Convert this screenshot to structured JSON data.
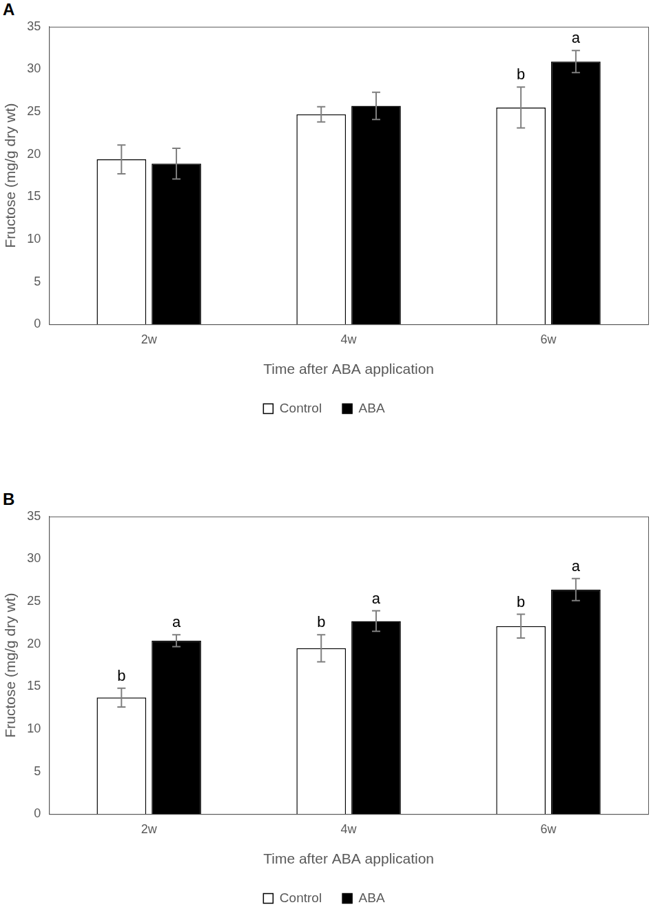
{
  "chart_data": [
    {
      "type": "bar",
      "title": "A",
      "x_label": "Time after ABA application",
      "y_label": "Fructose (mg/g dry wt)",
      "categories": [
        "2w",
        "4w",
        "6w"
      ],
      "series": [
        {
          "name": "Control",
          "color": "#ffffff",
          "values": [
            19.4,
            24.7,
            25.5
          ],
          "errors": [
            1.7,
            0.9,
            2.4
          ],
          "letters": [
            null,
            null,
            "b"
          ]
        },
        {
          "name": "ABA",
          "color": "#000000",
          "values": [
            18.9,
            25.7,
            30.9
          ],
          "errors": [
            1.8,
            1.6,
            1.3
          ],
          "letters": [
            null,
            null,
            "a"
          ]
        }
      ],
      "ylim": [
        0,
        35
      ],
      "yticks": [
        0,
        5,
        10,
        15,
        20,
        25,
        30,
        35
      ],
      "grid": false,
      "legend": "bottom"
    },
    {
      "type": "bar",
      "title": "B",
      "x_label": "Time after ABA application",
      "y_label": "Fructose (mg/g dry wt)",
      "categories": [
        "2w",
        "4w",
        "6w"
      ],
      "series": [
        {
          "name": "Control",
          "color": "#ffffff",
          "values": [
            13.7,
            19.5,
            22.1
          ],
          "errors": [
            1.1,
            1.6,
            1.4
          ],
          "letters": [
            "b",
            "b",
            "b"
          ]
        },
        {
          "name": "ABA",
          "color": "#000000",
          "values": [
            20.4,
            22.7,
            26.4
          ],
          "errors": [
            0.7,
            1.2,
            1.3
          ],
          "letters": [
            "a",
            "a",
            "a"
          ]
        }
      ],
      "ylim": [
        0,
        35
      ],
      "yticks": [
        0,
        5,
        10,
        15,
        20,
        25,
        30,
        35
      ],
      "grid": false,
      "legend": "bottom"
    }
  ]
}
